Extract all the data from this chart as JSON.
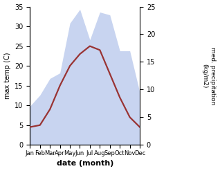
{
  "months": [
    "Jan",
    "Feb",
    "Mar",
    "Apr",
    "May",
    "Jun",
    "Jul",
    "Aug",
    "Sep",
    "Oct",
    "Nov",
    "Dec"
  ],
  "temp_max": [
    4.5,
    5.0,
    9.0,
    15.0,
    20.0,
    23.0,
    25.0,
    24.0,
    18.0,
    12.0,
    7.0,
    4.5
  ],
  "precip": [
    7.0,
    9.0,
    12.0,
    13.0,
    22.0,
    24.5,
    19.0,
    24.0,
    23.5,
    17.0,
    17.0,
    9.5
  ],
  "temp_color": "#993333",
  "precip_fill_color": "#c8d4f0",
  "ylabel_left": "max temp (C)",
  "ylabel_right": "med. precipitation\n(kg/m2)",
  "xlabel": "date (month)",
  "ylim_left": [
    0,
    35
  ],
  "ylim_right": [
    0,
    25
  ],
  "yticks_left": [
    0,
    5,
    10,
    15,
    20,
    25,
    30,
    35
  ],
  "yticks_right": [
    0,
    5,
    10,
    15,
    20,
    25
  ],
  "background_color": "#ffffff",
  "temp_linewidth": 1.6
}
